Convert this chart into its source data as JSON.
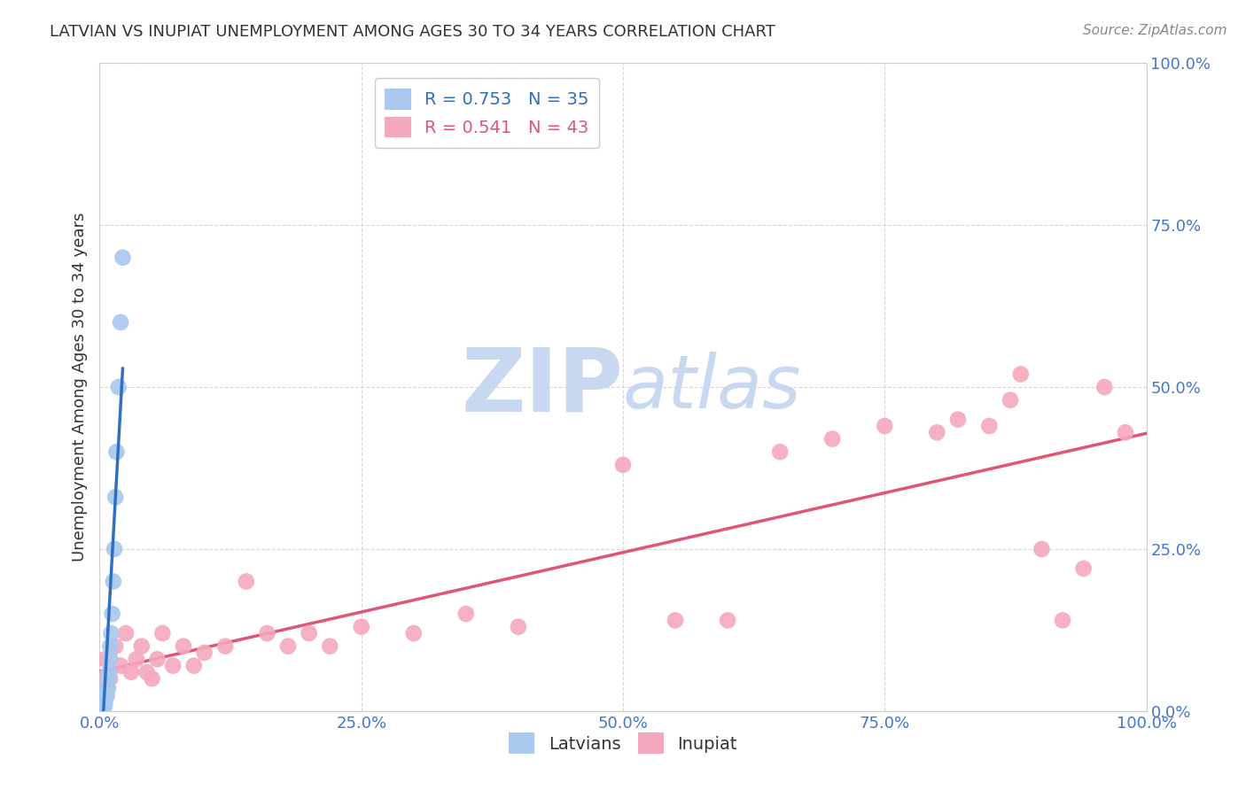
{
  "title": "LATVIAN VS INUPIAT UNEMPLOYMENT AMONG AGES 30 TO 34 YEARS CORRELATION CHART",
  "source": "Source: ZipAtlas.com",
  "ylabel": "Unemployment Among Ages 30 to 34 years",
  "latvian_R": 0.753,
  "latvian_N": 35,
  "inupiat_R": 0.541,
  "inupiat_N": 43,
  "latvian_color": "#A8C8EE",
  "inupiat_color": "#F4A8BC",
  "latvian_line_color": "#2E6FBF",
  "inupiat_line_color": "#E05575",
  "watermark_zip": "ZIP",
  "watermark_atlas": "atlas",
  "watermark_color": "#C8D8F0",
  "background_color": "#FFFFFF",
  "grid_color": "#CCCCCC",
  "axis_label_color": "#4477CC",
  "title_color": "#333333",
  "latvian_x": [
    0.001,
    0.001,
    0.001,
    0.001,
    0.001,
    0.002,
    0.002,
    0.002,
    0.003,
    0.003,
    0.003,
    0.003,
    0.004,
    0.004,
    0.004,
    0.005,
    0.005,
    0.006,
    0.006,
    0.007,
    0.007,
    0.008,
    0.008,
    0.009,
    0.01,
    0.01,
    0.011,
    0.012,
    0.013,
    0.014,
    0.015,
    0.016,
    0.018,
    0.02,
    0.022
  ],
  "latvian_y": [
    0.0,
    0.0,
    0.0,
    0.0,
    0.005,
    0.0,
    0.0,
    0.005,
    0.0,
    0.0,
    0.005,
    0.01,
    0.005,
    0.01,
    0.015,
    0.01,
    0.02,
    0.02,
    0.03,
    0.025,
    0.04,
    0.035,
    0.05,
    0.06,
    0.08,
    0.1,
    0.12,
    0.15,
    0.2,
    0.25,
    0.33,
    0.4,
    0.5,
    0.6,
    0.7
  ],
  "inupiat_x": [
    0.002,
    0.005,
    0.01,
    0.015,
    0.02,
    0.025,
    0.03,
    0.035,
    0.04,
    0.045,
    0.05,
    0.055,
    0.06,
    0.07,
    0.08,
    0.09,
    0.1,
    0.12,
    0.14,
    0.16,
    0.18,
    0.2,
    0.22,
    0.25,
    0.3,
    0.35,
    0.4,
    0.5,
    0.55,
    0.6,
    0.65,
    0.7,
    0.75,
    0.8,
    0.82,
    0.85,
    0.87,
    0.88,
    0.9,
    0.92,
    0.94,
    0.96,
    0.98
  ],
  "inupiat_y": [
    0.05,
    0.08,
    0.05,
    0.1,
    0.07,
    0.12,
    0.06,
    0.08,
    0.1,
    0.06,
    0.05,
    0.08,
    0.12,
    0.07,
    0.1,
    0.07,
    0.09,
    0.1,
    0.2,
    0.12,
    0.1,
    0.12,
    0.1,
    0.13,
    0.12,
    0.15,
    0.13,
    0.38,
    0.14,
    0.14,
    0.4,
    0.42,
    0.44,
    0.43,
    0.45,
    0.44,
    0.48,
    0.52,
    0.25,
    0.14,
    0.22,
    0.5,
    0.43
  ],
  "xlim": [
    0.0,
    1.0
  ],
  "ylim": [
    0.0,
    1.0
  ],
  "xticks": [
    0.0,
    0.25,
    0.5,
    0.75,
    1.0
  ],
  "yticks": [
    0.0,
    0.25,
    0.5,
    0.75,
    1.0
  ],
  "xticklabels": [
    "0.0%",
    "25.0%",
    "50.0%",
    "75.0%",
    "100.0%"
  ],
  "yticklabels": [
    "0.0%",
    "25.0%",
    "50.0%",
    "75.0%",
    "100.0%"
  ]
}
